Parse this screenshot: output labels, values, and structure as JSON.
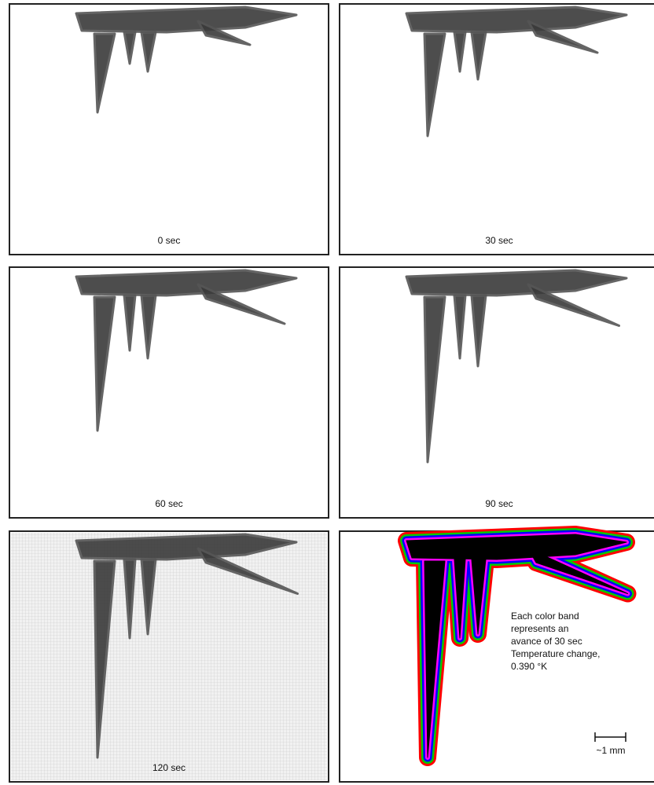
{
  "panels": [
    {
      "label": "0 sec"
    },
    {
      "label": "30 sec"
    },
    {
      "label": "60 sec"
    },
    {
      "label": "90 sec"
    },
    {
      "label": "120 sec"
    }
  ],
  "color_panel": {
    "annotation": [
      "Each color band",
      "represents an",
      "avance of 30 sec",
      "Temperature change,",
      "0.390 °K"
    ],
    "scale": "~1 mm"
  }
}
